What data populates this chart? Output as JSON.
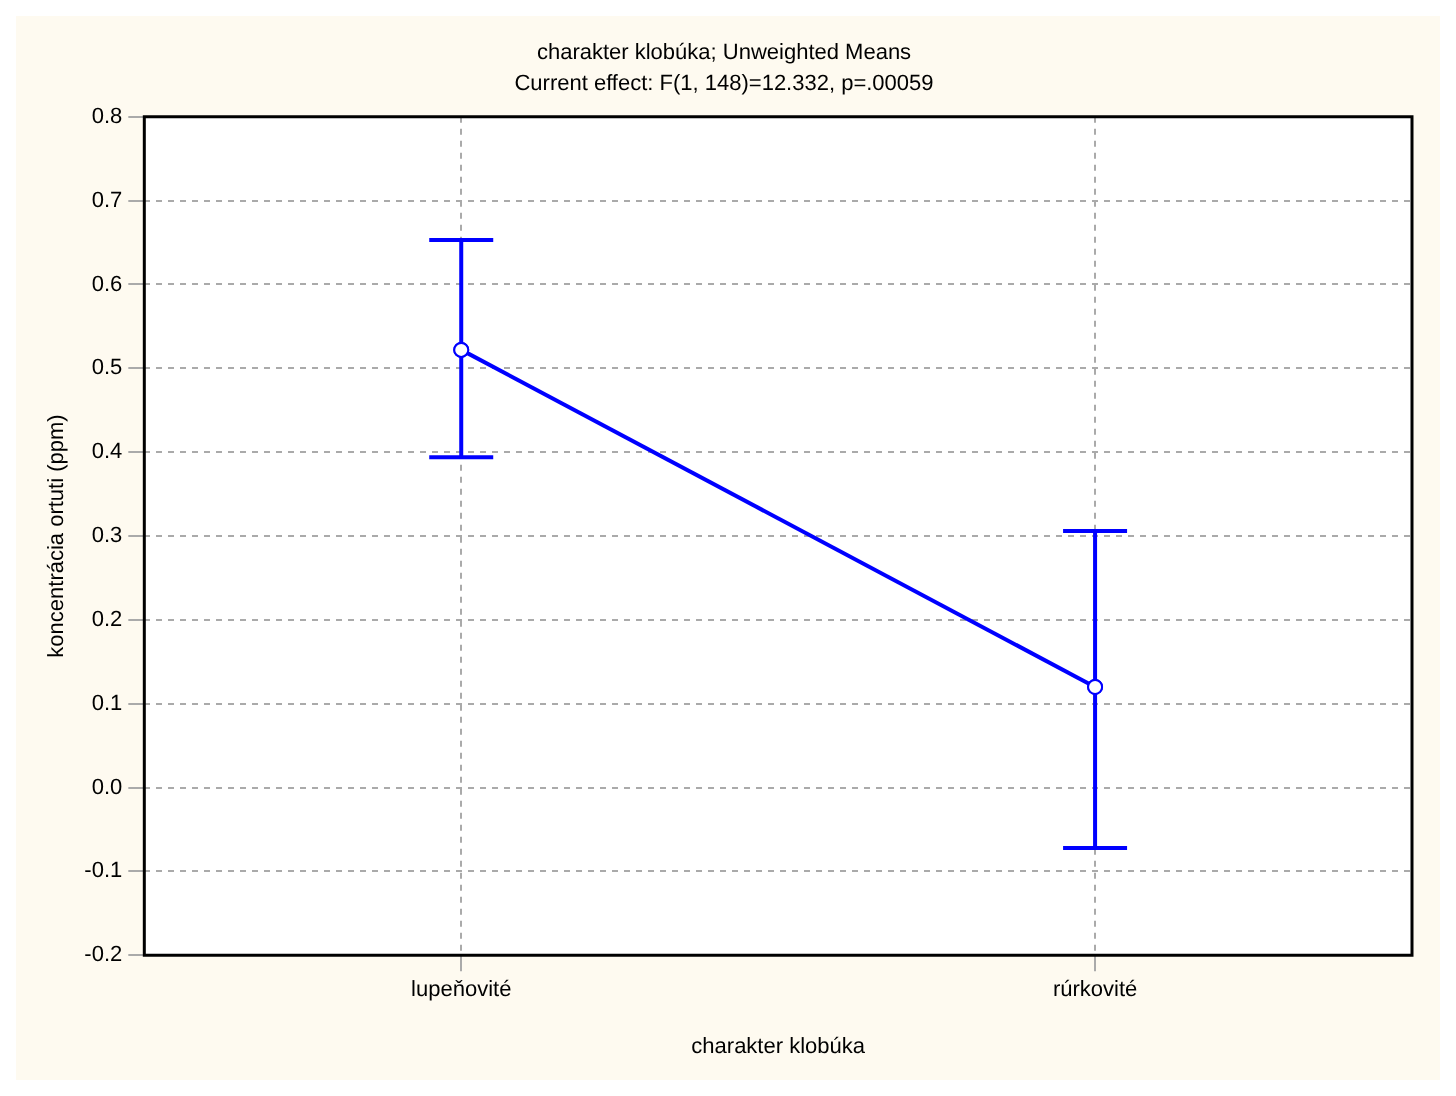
{
  "chart_data": {
    "type": "line",
    "title": "charakter klobúka; Unweighted Means",
    "subtitle": "Current effect: F(1, 148)=12.332, p=.00059",
    "xlabel": "charakter klobúka",
    "ylabel": "koncentrácia ortuti (ppm)",
    "categories": [
      "lupeňovité",
      "rúrkovité"
    ],
    "series": [
      {
        "color": "#0000ff",
        "values": [
          0.522,
          0.12
        ],
        "errors": [
          [
            0.394,
            0.653
          ],
          [
            -0.072,
            0.306
          ]
        ]
      }
    ],
    "ylim": [
      -0.2,
      0.8
    ],
    "yticks": [
      {
        "value": -0.2,
        "label": "-0.2"
      },
      -0.1,
      {
        "value": 0,
        "label": "0.0"
      },
      0.1,
      0.2,
      0.3,
      0.4,
      0.5,
      0.6,
      0.7,
      0.8
    ],
    "grid": true,
    "legend": false,
    "marker": "circle",
    "line_style": "solid"
  }
}
